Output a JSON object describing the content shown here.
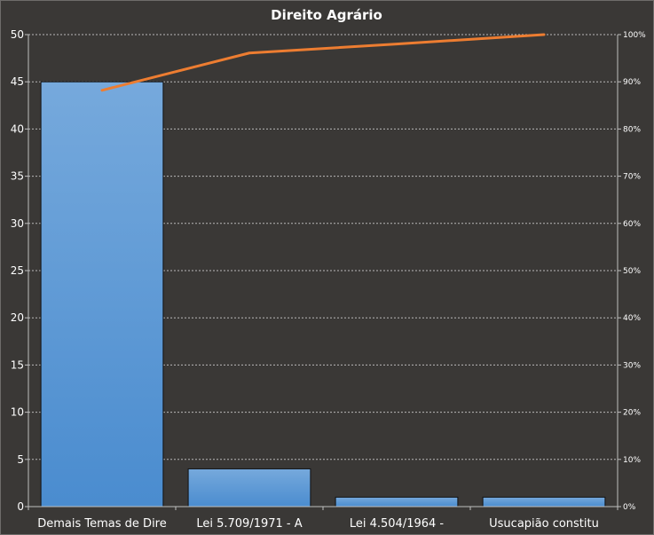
{
  "chart_data": {
    "type": "bar",
    "title": "Direito Agrário",
    "categories": [
      "Demais Temas de Dire",
      "Lei 5.709/1971  - A",
      "Lei 4.504/1964  -",
      "Usucapião constitu"
    ],
    "series": [
      {
        "values": [
          45,
          4,
          1,
          1
        ],
        "type": "bar",
        "color": "#5b9bd5"
      },
      {
        "values": [
          88.2,
          96.1,
          98.0,
          100.0
        ],
        "type": "line",
        "axis": "secondary",
        "color": "#ed7d31"
      }
    ],
    "ylim": [
      0,
      50
    ],
    "yticks": [
      "0",
      "5",
      "10",
      "15",
      "20",
      "25",
      "30",
      "35",
      "40",
      "45",
      "50"
    ],
    "y2lim": [
      0,
      100
    ],
    "y2ticks": [
      "0%",
      "10%",
      "20%",
      "30%",
      "40%",
      "50%",
      "60%",
      "70%",
      "80%",
      "90%",
      "100%"
    ],
    "grid": true
  }
}
